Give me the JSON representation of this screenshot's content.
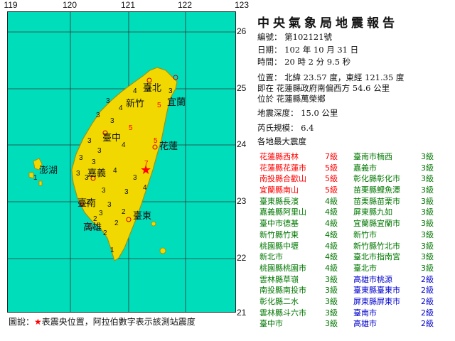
{
  "axes": {
    "lon_ticks": [
      "119",
      "120",
      "121",
      "122",
      "123"
    ],
    "lat_ticks": [
      "26",
      "25",
      "24",
      "23",
      "22",
      "21"
    ]
  },
  "colors": {
    "sea": "#00ddbb",
    "land": "#f0d800",
    "epicenter": "#ff0000",
    "grid": "#333333"
  },
  "report": {
    "title": "中央氣象局地震報告",
    "number": "編號： 第102121號",
    "date": "日期： 102 年 10 月 31 日",
    "time": "時間： 20 時 2 分 9.5 秒",
    "position": "位置： 北緯 23.57 度，東經 121.35 度",
    "relative": "即在 花蓮縣政府南偏西方 54.6 公里",
    "located": "位於 花蓮縣萬榮鄉",
    "depth": "地震深度： 15.0 公里",
    "magnitude": "芮氏規模： 6.4",
    "intensity_heading": "各地最大震度"
  },
  "intensities": [
    {
      "left_place": "花蓮縣西林",
      "left_level": "7級",
      "left_color": "red",
      "right_place": "臺南市楠西",
      "right_level": "3級",
      "right_color": "green"
    },
    {
      "left_place": "花蓮縣花蓮市",
      "left_level": "5級",
      "left_color": "red",
      "right_place": "嘉義市",
      "right_level": "3級",
      "right_color": "green"
    },
    {
      "left_place": "南投縣合歡山",
      "left_level": "5級",
      "left_color": "red",
      "right_place": "彰化縣彰化市",
      "right_level": "3級",
      "right_color": "green"
    },
    {
      "left_place": "宜蘭縣南山",
      "left_level": "5級",
      "left_color": "red",
      "right_place": "苗栗縣鯉魚潭",
      "right_level": "3級",
      "right_color": "green"
    },
    {
      "left_place": "臺東縣長濱",
      "left_level": "4級",
      "left_color": "green",
      "right_place": "苗栗縣苗栗市",
      "right_level": "3級",
      "right_color": "green"
    },
    {
      "left_place": "嘉義縣阿里山",
      "left_level": "4級",
      "left_color": "green",
      "right_place": "屏東縣九如",
      "right_level": "3級",
      "right_color": "green"
    },
    {
      "left_place": "臺中市德基",
      "left_level": "4級",
      "left_color": "green",
      "right_place": "宜蘭縣宜蘭市",
      "right_level": "3級",
      "right_color": "green"
    },
    {
      "left_place": "新竹縣竹東",
      "left_level": "4級",
      "left_color": "green",
      "right_place": "新竹市",
      "right_level": "3級",
      "right_color": "green"
    },
    {
      "left_place": "桃園縣中壢",
      "left_level": "4級",
      "left_color": "green",
      "right_place": "新竹縣竹北市",
      "right_level": "3級",
      "right_color": "green"
    },
    {
      "left_place": "新北市",
      "left_level": "4級",
      "left_color": "green",
      "right_place": "臺北市指南宮",
      "right_level": "3級",
      "right_color": "green"
    },
    {
      "left_place": "桃園縣桃園市",
      "left_level": "4級",
      "left_color": "green",
      "right_place": "臺北市",
      "right_level": "3級",
      "right_color": "green"
    },
    {
      "left_place": "雲林縣草嶺",
      "left_level": "3級",
      "left_color": "green",
      "right_place": "高雄市桃源",
      "right_level": "2級",
      "right_color": "blue"
    },
    {
      "left_place": "南投縣南投市",
      "left_level": "3級",
      "left_color": "green",
      "right_place": "臺東縣臺東市",
      "right_level": "2級",
      "right_color": "blue"
    },
    {
      "left_place": "彰化縣二水",
      "left_level": "3級",
      "left_color": "green",
      "right_place": "屏東縣屏東市",
      "right_level": "2級",
      "right_color": "blue"
    },
    {
      "left_place": "雲林縣斗六市",
      "left_level": "3級",
      "left_color": "green",
      "right_place": "臺南市",
      "right_level": "2級",
      "right_color": "blue"
    },
    {
      "left_place": "臺中市",
      "left_level": "3級",
      "left_color": "green",
      "right_place": "高雄市",
      "right_level": "2級",
      "right_color": "blue"
    }
  ],
  "map_labels": {
    "taipei": "臺北",
    "hsinchu": "新竹",
    "yilan": "宜蘭",
    "taichung": "臺中",
    "hualien": "花蓮",
    "penghu": "澎湖",
    "chiayi": "嘉義",
    "tainan": "臺南",
    "taitung": "臺東",
    "kaohsiung": "高雄"
  },
  "map_intensity_marks": [
    "7",
    "5",
    "5",
    "5",
    "4",
    "4",
    "4",
    "4",
    "4",
    "4",
    "3",
    "3",
    "3",
    "3",
    "3",
    "3",
    "3",
    "3",
    "3",
    "3",
    "3",
    "3",
    "3",
    "3",
    "3",
    "2",
    "2",
    "2",
    "2",
    "2",
    "1",
    "1"
  ],
  "legend": {
    "prefix": "圖說：",
    "star": "★",
    "text": "表震央位置，阿拉伯數字表示該測站震度"
  }
}
